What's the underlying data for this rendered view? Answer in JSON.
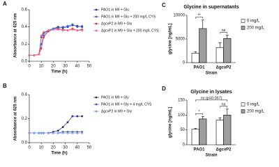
{
  "chart_data": [
    {
      "type": "line",
      "label": "A",
      "x_label": "Time (h)",
      "y_label": "Absorbance at 625 nm",
      "x": [
        0,
        4,
        8,
        10,
        12,
        16,
        20,
        24,
        28,
        32,
        36,
        40,
        44
      ],
      "xlim": [
        0,
        50
      ],
      "xticks": [
        0,
        10,
        20,
        30,
        40,
        50
      ],
      "ylim": [
        0,
        0.6
      ],
      "yticks": [
        {
          "value": 0,
          "label": "0.0"
        },
        {
          "value": 0.2,
          "label": "0.2"
        },
        {
          "value": 0.4,
          "label": "0.4"
        },
        {
          "value": 0.6,
          "label": "0.6"
        }
      ],
      "series": [
        {
          "name": "PAO1 in M9 + Glu",
          "color": "#1f2a7a",
          "values": [
            0.07,
            0.07,
            0.08,
            0.28,
            0.33,
            0.36,
            0.38,
            0.4,
            0.39,
            0.4,
            0.42,
            0.41,
            0.4
          ]
        },
        {
          "name": "PAO1 in M9 + Glu + 200 mg/L CYS",
          "color": "#3b5bdb",
          "values": [
            0.07,
            0.07,
            0.08,
            0.2,
            0.3,
            0.36,
            0.38,
            0.39,
            0.4,
            0.41,
            0.43,
            0.4,
            0.41
          ]
        },
        {
          "name": "ΔgcvP2 in M9 + Glu",
          "color": "#e03131",
          "values": [
            0.07,
            0.07,
            0.08,
            0.15,
            0.28,
            0.35,
            0.37,
            0.38,
            0.37,
            0.36,
            0.38,
            0.36,
            0.37
          ]
        },
        {
          "name": "ΔgcvP2 in M9 + Glu + 200 mg/L CYS",
          "color": "#f06595",
          "values": [
            0.07,
            0.07,
            0.08,
            0.3,
            0.34,
            0.36,
            0.37,
            0.37,
            0.36,
            0.36,
            0.37,
            0.36,
            0.36
          ]
        }
      ]
    },
    {
      "type": "line",
      "label": "B",
      "x_label": "Time (h)",
      "y_label": "Absorbance at 625 nm",
      "x": [
        0,
        4,
        8,
        10,
        12,
        16,
        20,
        24,
        28,
        32,
        36,
        40,
        44
      ],
      "xlim": [
        0,
        50
      ],
      "xticks": [
        0,
        10,
        20,
        30,
        40,
        50
      ],
      "ylim": [
        0,
        0.4
      ],
      "yticks": [
        {
          "value": 0,
          "label": "0.0"
        },
        {
          "value": 0.2,
          "label": "0.2"
        },
        {
          "value": 0.4,
          "label": "0.4"
        }
      ],
      "series": [
        {
          "name": "PAO1 in M9 + Gly",
          "color": "#1f2a7a",
          "values": [
            0.08,
            0.08,
            0.08,
            0.08,
            0.08,
            0.08,
            0.09,
            0.1,
            0.13,
            0.17,
            0.22,
            0.22,
            0.22
          ]
        },
        {
          "name": "PAO1 in M9 + Gly + 4 mg/L CYS",
          "color": "#3b4fd8",
          "values": [
            0.08,
            0.08,
            0.08,
            0.08,
            0.08,
            0.08,
            0.08,
            0.08,
            0.09,
            0.09,
            0.09,
            0.09,
            0.09
          ]
        },
        {
          "name": "ΔgcvP2 in M9 + Gly",
          "color": "#7b9fe6",
          "values": [
            0.08,
            0.08,
            0.08,
            0.08,
            0.08,
            0.08,
            0.08,
            0.08,
            0.08,
            0.08,
            0.08,
            0.08,
            0.08
          ]
        }
      ]
    },
    {
      "type": "bar",
      "label": "C",
      "title": "Glycine in supernatants",
      "x_label": "Strain",
      "y_label": "glycine [ng/mL]",
      "categories": [
        "PAO1",
        "ΔgcvP2"
      ],
      "ylim": [
        0,
        10000
      ],
      "yticks": [
        0,
        5000,
        10000
      ],
      "series": [
        {
          "name": "0 mg/L",
          "color": "#ffffff",
          "values": [
            2000,
            3200
          ],
          "errors": [
            300,
            1000
          ]
        },
        {
          "name": "200 mg/L",
          "color": "#9e9e9e",
          "values": [
            7200,
            5100
          ],
          "errors": [
            1800,
            700
          ]
        }
      ],
      "annotations": [
        "**",
        "ns"
      ]
    },
    {
      "type": "bar",
      "label": "D",
      "title": "Glycine in lysates",
      "x_label": "Strain",
      "y_label": "glycine [ng/mL]",
      "categories": [
        "PAO1",
        "ΔgcvP2"
      ],
      "ylim": [
        0,
        150
      ],
      "yticks": [
        0,
        50,
        100,
        150
      ],
      "series": [
        {
          "name": "0 mg/L",
          "color": "#ffffff",
          "values": [
            52,
            83
          ],
          "errors": [
            3,
            8
          ]
        },
        {
          "name": "200 mg/L",
          "color": "#9e9e9e",
          "values": [
            87,
            100
          ],
          "errors": [
            8,
            20
          ]
        }
      ],
      "annotations": [
        "*",
        "ns (p=0.067)",
        "ns"
      ]
    }
  ]
}
